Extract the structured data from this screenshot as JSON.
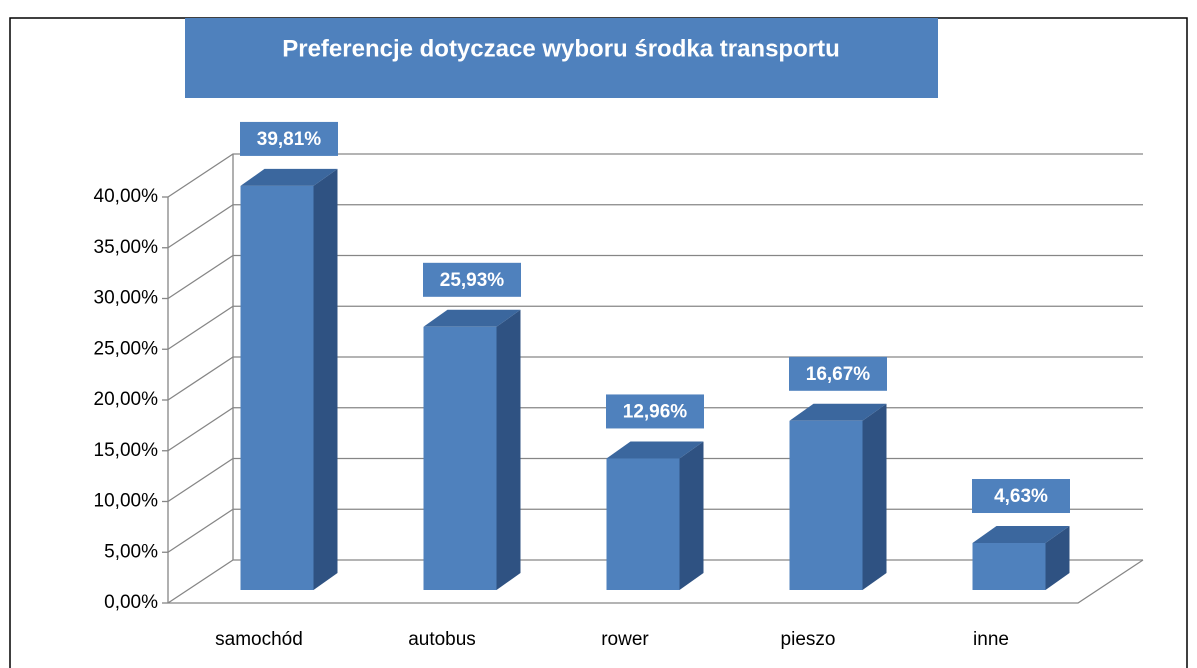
{
  "chart_data": {
    "type": "bar3d",
    "title": "Preferencje dotyczace wyboru środka transportu",
    "categories": [
      "samochód",
      "autobus",
      "rower",
      "pieszo",
      "inne"
    ],
    "values": [
      39.81,
      25.93,
      12.96,
      16.67,
      4.63
    ],
    "value_labels": [
      "39,81%",
      "25,93%",
      "12,96%",
      "16,67%",
      "4,63%"
    ],
    "color": "#4f81bd",
    "ylim": [
      0,
      40
    ],
    "yticks": [
      {
        "value": 0,
        "label": "0,00%"
      },
      {
        "value": 5,
        "label": "5,00%"
      },
      {
        "value": 10,
        "label": "10,00%"
      },
      {
        "value": 15,
        "label": "15,00%"
      },
      {
        "value": 20,
        "label": "20,00%"
      },
      {
        "value": 25,
        "label": "25,00%"
      },
      {
        "value": 30,
        "label": "30,00%"
      },
      {
        "value": 35,
        "label": "35,00%"
      },
      {
        "value": 40,
        "label": "40,00%"
      }
    ],
    "grid": true
  }
}
